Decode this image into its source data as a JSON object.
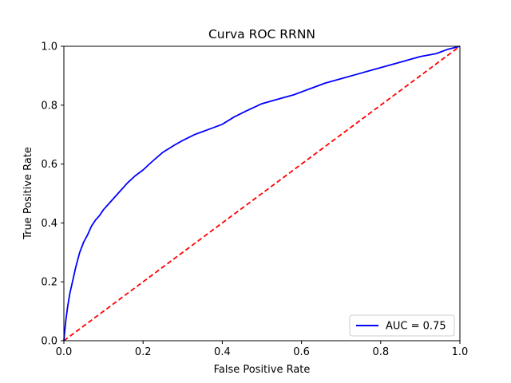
{
  "chart_data": {
    "type": "line",
    "title": "Curva ROC RRNN",
    "xlabel": "False Positive Rate",
    "ylabel": "True Positive Rate",
    "xlim": [
      0.0,
      1.0
    ],
    "ylim": [
      0.0,
      1.0
    ],
    "xticks": [
      "0.0",
      "0.2",
      "0.4",
      "0.6",
      "0.8",
      "1.0"
    ],
    "yticks": [
      "0.0",
      "0.2",
      "0.4",
      "0.6",
      "0.8",
      "1.0"
    ],
    "grid": false,
    "legend_position": "lower right",
    "series": [
      {
        "name": "AUC = 0.75",
        "color": "#0000ff",
        "style": "solid",
        "x": [
          0.0,
          0.002,
          0.005,
          0.01,
          0.015,
          0.02,
          0.03,
          0.04,
          0.05,
          0.06,
          0.07,
          0.08,
          0.09,
          0.1,
          0.12,
          0.14,
          0.16,
          0.18,
          0.2,
          0.22,
          0.25,
          0.28,
          0.3,
          0.33,
          0.36,
          0.4,
          0.43,
          0.46,
          0.5,
          0.54,
          0.58,
          0.62,
          0.66,
          0.7,
          0.74,
          0.78,
          0.82,
          0.86,
          0.9,
          0.94,
          0.97,
          1.0
        ],
        "y": [
          0.0,
          0.03,
          0.07,
          0.12,
          0.16,
          0.19,
          0.25,
          0.3,
          0.335,
          0.36,
          0.39,
          0.41,
          0.425,
          0.445,
          0.475,
          0.505,
          0.535,
          0.56,
          0.58,
          0.605,
          0.64,
          0.665,
          0.68,
          0.7,
          0.715,
          0.735,
          0.76,
          0.78,
          0.805,
          0.82,
          0.835,
          0.855,
          0.875,
          0.89,
          0.905,
          0.92,
          0.935,
          0.95,
          0.965,
          0.975,
          0.99,
          1.0
        ]
      },
      {
        "name": "",
        "color": "#ff0000",
        "style": "dashed",
        "x": [
          0.0,
          1.0
        ],
        "y": [
          0.0,
          1.0
        ]
      }
    ]
  }
}
